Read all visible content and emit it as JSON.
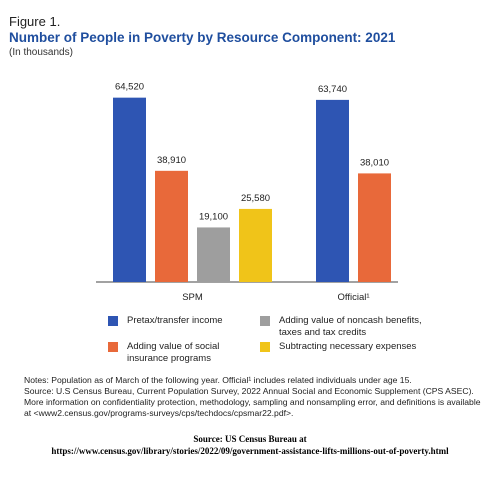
{
  "figure_label": "Figure 1.",
  "chart_data": {
    "type": "bar",
    "title": "Number of People in Poverty by Resource Component: 2021",
    "subtitle": "(In thousands)",
    "categories": [
      "SPM",
      "Official¹"
    ],
    "series": [
      {
        "name": "Pretax/transfer income",
        "color": "#2e55b3",
        "values": [
          64520,
          63740
        ],
        "labels": [
          "64,520",
          "63,740"
        ]
      },
      {
        "name": "Adding value of social insurance programs",
        "color": "#e8693a",
        "values": [
          38910,
          38010
        ],
        "labels": [
          "38,910",
          "38,010"
        ]
      },
      {
        "name": "Adding value of noncash benefits, taxes and tax credits",
        "color": "#9e9e9e",
        "values": [
          19100,
          null
        ],
        "labels": [
          "19,100",
          ""
        ]
      },
      {
        "name": "Subtracting necessary expenses",
        "color": "#f0c419",
        "values": [
          25580,
          null
        ],
        "labels": [
          "25,580",
          ""
        ]
      }
    ],
    "ylim": [
      0,
      70000
    ],
    "grid": false,
    "legend_position": "bottom"
  },
  "legend": [
    {
      "label": "Pretax/transfer income",
      "color": "#2e55b3"
    },
    {
      "label": "Adding value of noncash benefits, taxes and tax credits",
      "color": "#9e9e9e"
    },
    {
      "label": "Adding value of social insurance programs",
      "color": "#e8693a"
    },
    {
      "label": "Subtracting necessary expenses",
      "color": "#f0c419"
    }
  ],
  "notes": {
    "line1": "Notes: Population as of March of the following year. Official¹ includes related individuals under age 15.",
    "line2": "Source: U.S Census Bureau, Current Population Survey, 2022 Annual Social and Economic Supplement (CPS ASEC). More information on confidentiality protection, methodology, sampling and nonsampling error, and definitions is available at <www2.census.gov/programs-surveys/cps/techdocs/cpsmar22.pdf>."
  },
  "source": {
    "line1": "Source: US Census Bureau at",
    "line2": "https://www.census.gov/library/stories/2022/09/government-assistance-lifts-millions-out-of-poverty.html"
  }
}
